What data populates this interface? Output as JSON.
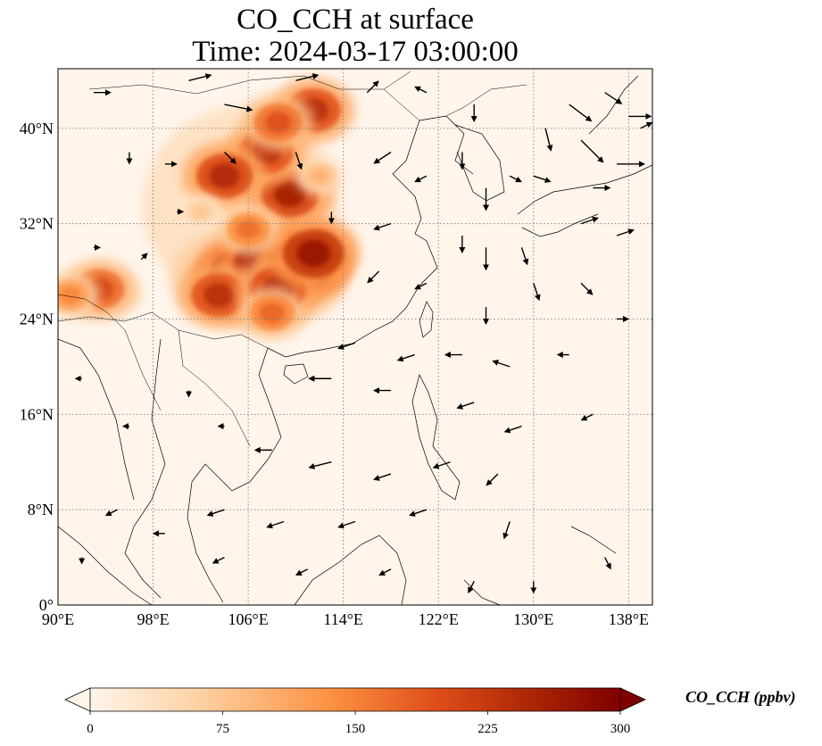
{
  "title": {
    "line1": "CO_CCH at surface",
    "line2": "Time: 2024-03-17 03:00:00"
  },
  "axes": {
    "x_ticks": [
      "90°E",
      "98°E",
      "106°E",
      "114°E",
      "122°E",
      "130°E",
      "138°E"
    ],
    "x_tick_values": [
      90,
      98,
      106,
      114,
      122,
      130,
      138
    ],
    "y_ticks": [
      "0°",
      "8°N",
      "16°N",
      "24°N",
      "32°N",
      "40°N"
    ],
    "y_tick_values": [
      0,
      8,
      16,
      24,
      32,
      40
    ],
    "lon_range": [
      90,
      140
    ],
    "lat_range": [
      0,
      45
    ],
    "grid": true
  },
  "colorbar": {
    "label": "CO_CCH (ppbv)",
    "ticks": [
      "0",
      "75",
      "150",
      "225",
      "300"
    ],
    "range": [
      0,
      300
    ],
    "extend": "both",
    "colormap": [
      "#fff5eb",
      "#fdd2a5",
      "#fd9243",
      "#df4f1a",
      "#a62204",
      "#7f0000"
    ]
  },
  "colors": {
    "background": "#fff5eb",
    "land_outline": "#000000",
    "grid": "#808080",
    "arrow": "#000000"
  },
  "plumes": [
    {
      "lon": 105.5,
      "lat": 27.5,
      "level": 300
    },
    {
      "lon": 107.5,
      "lat": 28.5,
      "level": 290
    },
    {
      "lon": 110.5,
      "lat": 28.5,
      "level": 280
    },
    {
      "lon": 103.5,
      "lat": 26.0,
      "level": 220
    },
    {
      "lon": 108.5,
      "lat": 26.5,
      "level": 230
    },
    {
      "lon": 111.5,
      "lat": 29.5,
      "level": 260
    },
    {
      "lon": 109.5,
      "lat": 34.5,
      "level": 240
    },
    {
      "lon": 107.5,
      "lat": 38.0,
      "level": 220
    },
    {
      "lon": 104.0,
      "lat": 36.0,
      "level": 230
    },
    {
      "lon": 111.5,
      "lat": 41.5,
      "level": 220
    },
    {
      "lon": 108.5,
      "lat": 40.5,
      "level": 180
    },
    {
      "lon": 93.5,
      "lat": 26.5,
      "level": 190
    },
    {
      "lon": 91.0,
      "lat": 26.0,
      "level": 130
    },
    {
      "lon": 106.0,
      "lat": 31.5,
      "level": 150
    },
    {
      "lon": 102.0,
      "lat": 33.0,
      "level": 70
    },
    {
      "lon": 108.0,
      "lat": 24.5,
      "level": 160
    },
    {
      "lon": 112.0,
      "lat": 36.0,
      "level": 90
    }
  ],
  "wind_arrows": [
    {
      "lon": 93,
      "lat": 43,
      "u": 3,
      "v": 0
    },
    {
      "lon": 101,
      "lat": 44,
      "u": 4,
      "v": 1
    },
    {
      "lon": 104,
      "lat": 42,
      "u": 5,
      "v": -1
    },
    {
      "lon": 110,
      "lat": 44,
      "u": 4,
      "v": 1
    },
    {
      "lon": 116,
      "lat": 43,
      "u": 2,
      "v": 2
    },
    {
      "lon": 121,
      "lat": 43,
      "u": -2,
      "v": 1
    },
    {
      "lon": 125,
      "lat": 42,
      "u": 0,
      "v": -3
    },
    {
      "lon": 133,
      "lat": 42,
      "u": 4,
      "v": -3
    },
    {
      "lon": 136,
      "lat": 43,
      "u": 3,
      "v": -2
    },
    {
      "lon": 138,
      "lat": 41,
      "u": 4,
      "v": 0
    },
    {
      "lon": 131,
      "lat": 40,
      "u": 1,
      "v": -4
    },
    {
      "lon": 134,
      "lat": 39,
      "u": 4,
      "v": -4
    },
    {
      "lon": 137,
      "lat": 37,
      "u": 5,
      "v": 0
    },
    {
      "lon": 139,
      "lat": 40,
      "u": 2,
      "v": 1
    },
    {
      "lon": 96,
      "lat": 38,
      "u": 0,
      "v": -2
    },
    {
      "lon": 99,
      "lat": 37,
      "u": 2,
      "v": 0
    },
    {
      "lon": 104,
      "lat": 38,
      "u": 2,
      "v": -2
    },
    {
      "lon": 110,
      "lat": 38,
      "u": 1,
      "v": -3
    },
    {
      "lon": 118,
      "lat": 38,
      "u": -3,
      "v": -2
    },
    {
      "lon": 121,
      "lat": 36,
      "u": -2,
      "v": -1
    },
    {
      "lon": 124,
      "lat": 38,
      "u": 0,
      "v": -3
    },
    {
      "lon": 126,
      "lat": 35,
      "u": 0,
      "v": -4
    },
    {
      "lon": 128,
      "lat": 36,
      "u": 2,
      "v": -1
    },
    {
      "lon": 130,
      "lat": 36,
      "u": 3,
      "v": -1
    },
    {
      "lon": 135,
      "lat": 35,
      "u": 3,
      "v": 0
    },
    {
      "lon": 100,
      "lat": 33,
      "u": 1,
      "v": 0
    },
    {
      "lon": 113,
      "lat": 33,
      "u": 0,
      "v": -2
    },
    {
      "lon": 118,
      "lat": 32,
      "u": -3,
      "v": -1
    },
    {
      "lon": 124,
      "lat": 31,
      "u": 0,
      "v": -3
    },
    {
      "lon": 126,
      "lat": 30,
      "u": 0,
      "v": -4
    },
    {
      "lon": 129,
      "lat": 30,
      "u": 1,
      "v": -3
    },
    {
      "lon": 134,
      "lat": 32,
      "u": 3,
      "v": 1
    },
    {
      "lon": 137,
      "lat": 31,
      "u": 3,
      "v": 1
    },
    {
      "lon": 117,
      "lat": 28,
      "u": -2,
      "v": -2
    },
    {
      "lon": 121,
      "lat": 27,
      "u": -2,
      "v": -1
    },
    {
      "lon": 126,
      "lat": 25,
      "u": 0,
      "v": -3
    },
    {
      "lon": 130,
      "lat": 27,
      "u": 1,
      "v": -3
    },
    {
      "lon": 134,
      "lat": 27,
      "u": 2,
      "v": -2
    },
    {
      "lon": 137,
      "lat": 24,
      "u": 2,
      "v": 0
    },
    {
      "lon": 115,
      "lat": 22,
      "u": -3,
      "v": -1
    },
    {
      "lon": 120,
      "lat": 21,
      "u": -3,
      "v": -1
    },
    {
      "lon": 124,
      "lat": 21,
      "u": -3,
      "v": 0
    },
    {
      "lon": 128,
      "lat": 20,
      "u": -3,
      "v": 1
    },
    {
      "lon": 133,
      "lat": 21,
      "u": -2,
      "v": 0
    },
    {
      "lon": 113,
      "lat": 19,
      "u": -4,
      "v": 0
    },
    {
      "lon": 118,
      "lat": 18,
      "u": -3,
      "v": 0
    },
    {
      "lon": 125,
      "lat": 17,
      "u": -3,
      "v": -1
    },
    {
      "lon": 129,
      "lat": 15,
      "u": -3,
      "v": -1
    },
    {
      "lon": 135,
      "lat": 16,
      "u": -2,
      "v": -1
    },
    {
      "lon": 108,
      "lat": 13,
      "u": -3,
      "v": 0
    },
    {
      "lon": 113,
      "lat": 12,
      "u": -4,
      "v": -1
    },
    {
      "lon": 118,
      "lat": 11,
      "u": -3,
      "v": -1
    },
    {
      "lon": 123,
      "lat": 12,
      "u": -3,
      "v": -1
    },
    {
      "lon": 127,
      "lat": 11,
      "u": -2,
      "v": -2
    },
    {
      "lon": 104,
      "lat": 8,
      "u": -3,
      "v": -1
    },
    {
      "lon": 109,
      "lat": 7,
      "u": -3,
      "v": -1
    },
    {
      "lon": 115,
      "lat": 7,
      "u": -3,
      "v": -1
    },
    {
      "lon": 121,
      "lat": 8,
      "u": -3,
      "v": -1
    },
    {
      "lon": 128,
      "lat": 7,
      "u": -1,
      "v": -3
    },
    {
      "lon": 95,
      "lat": 8,
      "u": -2,
      "v": -1
    },
    {
      "lon": 99,
      "lat": 6,
      "u": -2,
      "v": 0
    },
    {
      "lon": 104,
      "lat": 4,
      "u": -2,
      "v": -1
    },
    {
      "lon": 111,
      "lat": 3,
      "u": -2,
      "v": -1
    },
    {
      "lon": 118,
      "lat": 3,
      "u": -2,
      "v": -1
    },
    {
      "lon": 125,
      "lat": 2,
      "u": -1,
      "v": -2
    },
    {
      "lon": 130,
      "lat": 2,
      "u": 0,
      "v": -2
    },
    {
      "lon": 136,
      "lat": 4,
      "u": 1,
      "v": -2
    },
    {
      "lon": 92,
      "lat": 19,
      "u": -1,
      "v": 0
    },
    {
      "lon": 96,
      "lat": 15,
      "u": -1,
      "v": 0
    },
    {
      "lon": 101,
      "lat": 18,
      "u": 0,
      "v": -1
    },
    {
      "lon": 104,
      "lat": 15,
      "u": -1,
      "v": 0
    },
    {
      "lon": 93,
      "lat": 30,
      "u": 1,
      "v": 0
    },
    {
      "lon": 97,
      "lat": 29,
      "u": 1,
      "v": 1
    },
    {
      "lon": 92,
      "lat": 4,
      "u": 0,
      "v": -1
    }
  ],
  "regions": {
    "country_labels": []
  }
}
